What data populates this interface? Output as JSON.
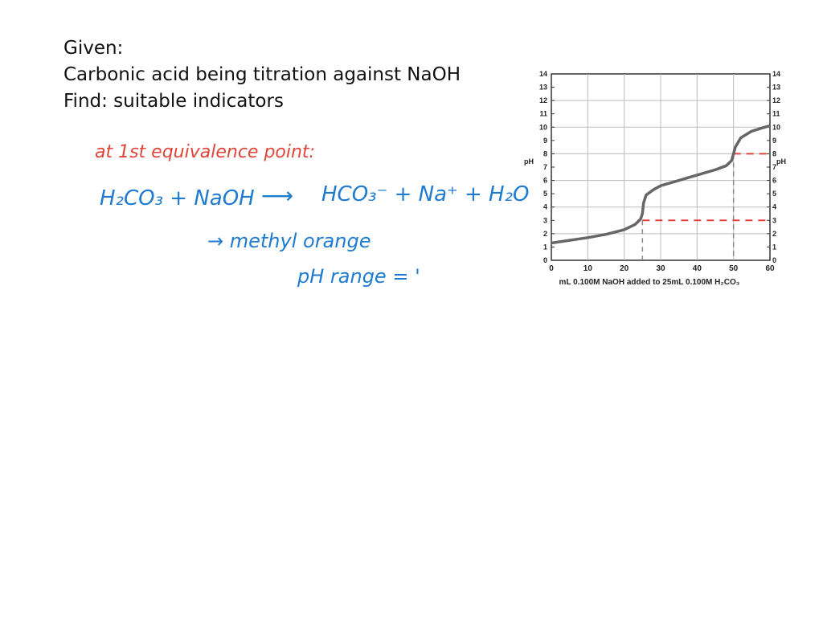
{
  "problem": {
    "lines": [
      "Given:",
      "Carbonic acid being titration against NaOH",
      "Find: suitable indicators"
    ]
  },
  "handwriting": {
    "heading": "at 1st equivalence point:",
    "reaction_left": "H₂CO₃ + NaOH",
    "reaction_arrow": "⟶",
    "reaction_right": "HCO₃⁻ + Na⁺ + H₂O",
    "indicator": "→ methyl orange",
    "ph_range": "pH range = '",
    "colors": {
      "heading": "#e0453a",
      "body": "#1f7bd0"
    }
  },
  "chart_data": {
    "type": "line",
    "xlabel": "mL 0.100M NaOH added to 25mL 0.100M H₂CO₃",
    "ylabel_left": "pH",
    "ylabel_right": "pH",
    "xlim": [
      0,
      60
    ],
    "ylim": [
      0,
      14
    ],
    "x_ticks": [
      0,
      10,
      20,
      30,
      40,
      50,
      60
    ],
    "y_ticks": [
      0,
      1,
      2,
      3,
      4,
      5,
      6,
      7,
      8,
      9,
      10,
      11,
      12,
      13,
      14
    ],
    "grid": true,
    "series": [
      {
        "x": [
          0,
          5,
          10,
          15,
          20,
          23,
          24.5,
          25,
          25.3,
          26,
          28,
          30,
          35,
          40,
          45,
          48,
          49.5,
          50,
          50.5,
          52,
          55,
          58,
          60
        ],
        "y": [
          1.3,
          1.5,
          1.7,
          1.95,
          2.3,
          2.7,
          3.1,
          3.5,
          4.3,
          4.9,
          5.3,
          5.6,
          6.0,
          6.4,
          6.8,
          7.1,
          7.5,
          8.0,
          8.5,
          9.2,
          9.7,
          9.95,
          10.1
        ],
        "color": "#666666"
      }
    ],
    "annotations": [
      {
        "kind": "vertical-dashed",
        "x": 25,
        "y_to": 3,
        "color": "#888888"
      },
      {
        "kind": "vertical-dashed",
        "x": 50,
        "y_to": 8,
        "color": "#888888"
      },
      {
        "kind": "horizontal-dashed",
        "y": 3,
        "x_from": 25,
        "x_to": 60,
        "color": "#e0453a"
      },
      {
        "kind": "horizontal-dashed",
        "y": 8,
        "x_from": 50,
        "x_to": 60,
        "color": "#e0453a"
      }
    ]
  }
}
